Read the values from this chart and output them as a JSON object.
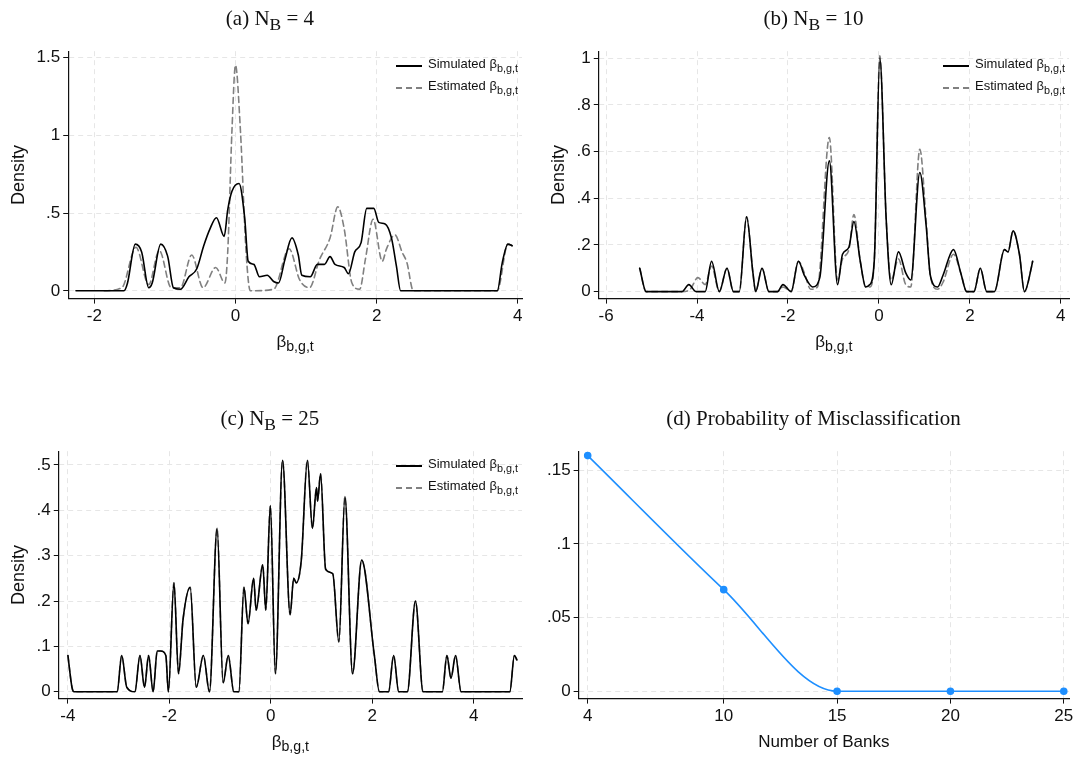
{
  "chart_data": [
    {
      "type": "line",
      "title": "(a) N$_{B}$ = 4",
      "xlabel": "β$_{b,g,t}$",
      "ylabel": "Density",
      "xlim": [
        -2.37,
        4.06
      ],
      "xticks": [
        -2,
        0,
        2,
        4
      ],
      "ylim": [
        -0.05,
        1.54
      ],
      "yticks": [
        0,
        {
          "value": 0.5,
          "label": ".5"
        },
        1,
        1.5
      ],
      "grid": true,
      "legend": "top right",
      "marker": "none",
      "series": [
        {
          "name": "Simulated β$_{b,g,t}$",
          "color": "#000000",
          "line_style": "solid",
          "x": [
            -2.26,
            -1.58,
            -1.53,
            -1.42,
            -1.33,
            -1.23,
            -1.18,
            -1.06,
            -0.96,
            -0.88,
            -0.78,
            -0.66,
            -0.55,
            -0.45,
            -0.36,
            -0.27,
            -0.16,
            -0.11,
            -0.05,
            0.05,
            0.13,
            0.18,
            0.26,
            0.34,
            0.45,
            0.54,
            0.61,
            0.7,
            0.8,
            0.89,
            0.94,
            1.06,
            1.16,
            1.26,
            1.34,
            1.41,
            1.54,
            1.6,
            1.69,
            1.78,
            1.86,
            1.96,
            2.03,
            2.12,
            2.21,
            2.28,
            2.34,
            3.71,
            3.78,
            3.86,
            3.92
          ],
          "values": [
            0,
            0,
            0.05,
            0.3,
            0.25,
            0.02,
            0.05,
            0.3,
            0.22,
            0.02,
            0.01,
            0.09,
            0.14,
            0.29,
            0.4,
            0.47,
            0.35,
            0.52,
            0.64,
            0.69,
            0.47,
            0.19,
            0.17,
            0.09,
            0.1,
            0.06,
            0.05,
            0.2,
            0.34,
            0.23,
            0.1,
            0.09,
            0.17,
            0.17,
            0.22,
            0.17,
            0.15,
            0.11,
            0.25,
            0.31,
            0.53,
            0.53,
            0.44,
            0.43,
            0.34,
            0.16,
            0,
            0,
            0.18,
            0.3,
            0.29
          ]
        },
        {
          "name": "Estimated β$_{b,g,t}$",
          "color": "#808080",
          "line_style": "dashed",
          "x": [
            -1.86,
            -1.61,
            -1.41,
            -1.23,
            -1.08,
            -0.91,
            -0.78,
            -0.62,
            -0.46,
            -0.28,
            -0.15,
            -0.11,
            -0.05,
            0.0,
            0.07,
            0.15,
            0.21,
            0.54,
            0.76,
            0.91,
            1.05,
            1.19,
            1.34,
            1.45,
            1.54,
            1.65,
            1.76,
            1.84,
            1.95,
            2.08,
            2.14,
            2.26,
            2.36,
            2.43,
            2.52,
            3.71,
            3.86,
            3.92
          ],
          "values": [
            0,
            0.02,
            0.28,
            0.04,
            0.26,
            0.02,
            0.02,
            0.23,
            0.02,
            0.15,
            0.05,
            0.25,
            1.03,
            1.45,
            1.03,
            0.25,
            0,
            0.01,
            0.27,
            0.07,
            0.02,
            0.2,
            0.34,
            0.54,
            0.4,
            0.05,
            0.01,
            0.2,
            0.46,
            0.19,
            0.27,
            0.36,
            0.25,
            0.18,
            0,
            0,
            0.3,
            0.29
          ]
        }
      ]
    },
    {
      "type": "line",
      "title": "(b) N$_{B}$ = 10",
      "xlabel": "β$_{b,g,t}$",
      "ylabel": "Density",
      "xlim": [
        -6.16,
        4.18
      ],
      "xticks": [
        -6,
        -4,
        -2,
        0,
        2,
        4
      ],
      "ylim": [
        -0.03,
        1.03
      ],
      "yticks": [
        0,
        {
          "value": 0.2,
          "label": ".2"
        },
        {
          "value": 0.4,
          "label": ".4"
        },
        {
          "value": 0.6,
          "label": ".6"
        },
        {
          "value": 0.8,
          "label": ".8"
        },
        1
      ],
      "grid": true,
      "legend": "top right",
      "marker": "none",
      "series": [
        {
          "name": "Simulated β$_{b,g,t}$",
          "color": "#000000",
          "line_style": "solid",
          "x": [
            -5.26,
            -5.12,
            -4.33,
            -4.18,
            -4.02,
            -3.82,
            -3.68,
            -3.51,
            -3.34,
            -3.2,
            -3.07,
            -2.91,
            -2.77,
            -2.71,
            -2.57,
            -2.42,
            -2.23,
            -2.11,
            -1.93,
            -1.77,
            -1.64,
            -1.46,
            -1.3,
            -1.09,
            -0.91,
            -0.8,
            -0.66,
            -0.55,
            -0.41,
            -0.29,
            -0.2,
            -0.1,
            0.02,
            0.16,
            0.27,
            0.43,
            0.59,
            0.7,
            0.9,
            1.04,
            1.13,
            1.29,
            1.41,
            1.64,
            1.8,
            1.93,
            2.09,
            2.23,
            2.37,
            2.54,
            2.76,
            2.84,
            2.95,
            3.09,
            3.2,
            3.36,
            3.38
          ],
          "values": [
            0.1,
            0,
            0,
            0.03,
            0,
            0,
            0.13,
            0,
            0.1,
            0,
            0,
            0.32,
            0.08,
            0,
            0.1,
            0,
            0,
            0.03,
            0,
            0.13,
            0.07,
            0.02,
            0.06,
            0.56,
            0.03,
            0.16,
            0.19,
            0.3,
            0.13,
            0.02,
            0.03,
            0.14,
            1.0,
            0.31,
            0.03,
            0.17,
            0.08,
            0.05,
            0.51,
            0.28,
            0.07,
            0.02,
            0.07,
            0.18,
            0.08,
            0,
            0,
            0.1,
            0,
            0,
            0.18,
            0.17,
            0.26,
            0.16,
            0,
            0.11,
            0.13
          ]
        },
        {
          "name": "Estimated β$_{b,g,t}$",
          "color": "#808080",
          "line_style": "dashed",
          "x": [
            -5.26,
            -5.12,
            -4.33,
            -4.15,
            -3.98,
            -3.82,
            -3.68,
            -3.51,
            -3.34,
            -3.2,
            -3.07,
            -2.91,
            -2.77,
            -2.71,
            -2.57,
            -2.42,
            -2.23,
            -2.11,
            -1.93,
            -1.77,
            -1.64,
            -1.5,
            -1.35,
            -1.09,
            -0.91,
            -0.8,
            -0.66,
            -0.55,
            -0.41,
            -0.29,
            -0.2,
            -0.1,
            0.02,
            0.16,
            0.27,
            0.43,
            0.59,
            0.7,
            0.9,
            1.04,
            1.13,
            1.29,
            1.41,
            1.64,
            1.8,
            1.93,
            2.09,
            2.23,
            2.37,
            2.54,
            2.76,
            2.84,
            2.95,
            3.09,
            3.2,
            3.36,
            3.38
          ],
          "values": [
            0.1,
            0,
            0,
            0.01,
            0.06,
            0.03,
            0.11,
            0,
            0.1,
            0,
            0,
            0.32,
            0.08,
            0,
            0.1,
            0,
            0,
            0.02,
            0,
            0.13,
            0.08,
            0.01,
            0.02,
            0.66,
            0.05,
            0.14,
            0.18,
            0.33,
            0.13,
            0.02,
            0.02,
            0.14,
            1.01,
            0.31,
            0.05,
            0.14,
            0.03,
            0.02,
            0.61,
            0.3,
            0.07,
            0.01,
            0.04,
            0.16,
            0.08,
            0,
            0,
            0.1,
            0,
            0,
            0.18,
            0.17,
            0.26,
            0.16,
            0,
            0.11,
            0.13
          ]
        }
      ]
    },
    {
      "type": "line",
      "title": "(c) N$_{B}$ = 25",
      "xlabel": "β$_{b,g,t}$",
      "ylabel": "Density",
      "xlim": [
        -4.18,
        4.95
      ],
      "xticks": [
        -4,
        -2,
        0,
        2,
        4
      ],
      "ylim": [
        -0.015,
        0.53
      ],
      "yticks": [
        0,
        {
          "value": 0.1,
          "label": ".1"
        },
        {
          "value": 0.2,
          "label": ".2"
        },
        {
          "value": 0.3,
          "label": ".3"
        },
        {
          "value": 0.4,
          "label": ".4"
        },
        {
          "value": 0.5,
          "label": ".5"
        }
      ],
      "grid": true,
      "legend": "top right",
      "marker": "none",
      "series": [
        {
          "name": "Simulated β$_{b,g,t}$",
          "color": "#000000",
          "line_style": "solid",
          "x": [
            -4.0,
            -3.92,
            -3.88,
            -3.03,
            -2.94,
            -2.84,
            -2.68,
            -2.58,
            -2.49,
            -2.41,
            -2.32,
            -2.24,
            -2.17,
            -2.07,
            -2.02,
            -1.91,
            -1.82,
            -1.73,
            -1.59,
            -1.47,
            -1.33,
            -1.21,
            -1.06,
            -0.94,
            -0.84,
            -0.73,
            -0.63,
            -0.53,
            -0.45,
            -0.34,
            -0.29,
            -0.16,
            -0.1,
            -0.01,
            0.09,
            0.23,
            0.38,
            0.45,
            0.5,
            0.6,
            0.72,
            0.82,
            0.9,
            0.92,
            0.98,
            1.08,
            1.22,
            1.34,
            1.46,
            1.61,
            1.79,
            2.04,
            2.14,
            2.32,
            2.42,
            2.52,
            2.69,
            2.85,
            3.0,
            3.38,
            3.47,
            3.55,
            3.64,
            3.75,
            4.71,
            4.8,
            4.85
          ],
          "values": [
            0.08,
            0.01,
            0,
            0,
            0.08,
            0.01,
            0,
            0.08,
            0.01,
            0.08,
            0,
            0.09,
            0.09,
            0.08,
            0,
            0.24,
            0.04,
            0.16,
            0.23,
            0.01,
            0.08,
            0,
            0.36,
            0.02,
            0.08,
            0,
            0,
            0.23,
            0.15,
            0.25,
            0.18,
            0.28,
            0.18,
            0.41,
            0.04,
            0.51,
            0.17,
            0.25,
            0.24,
            0.29,
            0.51,
            0.36,
            0.45,
            0.42,
            0.48,
            0.27,
            0.26,
            0.11,
            0.43,
            0.04,
            0.29,
            0.08,
            0,
            0,
            0.08,
            0,
            0,
            0.2,
            0,
            0,
            0.08,
            0.03,
            0.08,
            0,
            0,
            0.08,
            0.07
          ]
        },
        {
          "name": "Estimated β$_{b,g,t}$",
          "color": "#808080",
          "line_style": "dashed",
          "x": [
            -4.0,
            -3.92,
            -3.88,
            -3.03,
            -2.94,
            -2.84,
            -2.68,
            -2.58,
            -2.49,
            -2.41,
            -2.32,
            -2.24,
            -2.17,
            -2.07,
            -2.02,
            -1.91,
            -1.82,
            -1.73,
            -1.59,
            -1.47,
            -1.33,
            -1.21,
            -1.06,
            -0.94,
            -0.84,
            -0.73,
            -0.63,
            -0.53,
            -0.45,
            -0.34,
            -0.29,
            -0.16,
            -0.1,
            -0.01,
            0.09,
            0.23,
            0.38,
            0.45,
            0.5,
            0.6,
            0.72,
            0.82,
            0.9,
            0.92,
            0.98,
            1.08,
            1.22,
            1.34,
            1.46,
            1.61,
            1.79,
            2.04,
            2.14,
            2.32,
            2.42,
            2.52,
            2.69,
            2.85,
            3.0,
            3.38,
            3.47,
            3.55,
            3.64,
            3.75,
            4.71,
            4.8,
            4.85
          ],
          "values": [
            0.08,
            0.01,
            0,
            0,
            0.08,
            0.01,
            0,
            0.08,
            0.01,
            0.08,
            0,
            0.09,
            0.09,
            0.08,
            0,
            0.24,
            0.04,
            0.16,
            0.23,
            0.01,
            0.08,
            0,
            0.36,
            0.02,
            0.08,
            0,
            0,
            0.23,
            0.15,
            0.25,
            0.18,
            0.28,
            0.18,
            0.41,
            0.04,
            0.51,
            0.17,
            0.25,
            0.24,
            0.29,
            0.51,
            0.36,
            0.45,
            0.42,
            0.48,
            0.27,
            0.26,
            0.11,
            0.43,
            0.04,
            0.29,
            0.08,
            0,
            0,
            0.08,
            0,
            0,
            0.2,
            0,
            0,
            0.08,
            0.03,
            0.08,
            0,
            0,
            0.08,
            0.07
          ]
        }
      ]
    },
    {
      "type": "line",
      "title": "(d) Probability of Misclassification",
      "xlabel": "Number of Banks",
      "x": [
        4,
        10,
        15,
        20,
        25
      ],
      "xlim": [
        3.6,
        25.23
      ],
      "xticks": [
        4,
        10,
        15,
        20,
        25
      ],
      "ylim": [
        -0.005,
        0.163
      ],
      "yticks": [
        0,
        {
          "value": 0.05,
          "label": ".05"
        },
        {
          "value": 0.1,
          "label": ".1"
        },
        {
          "value": 0.15,
          "label": ".15"
        }
      ],
      "grid": true,
      "marker": "circle",
      "series": [
        {
          "color": "#1e8fff",
          "values": [
            0.16,
            0.069,
            0,
            0,
            0
          ]
        }
      ]
    }
  ]
}
